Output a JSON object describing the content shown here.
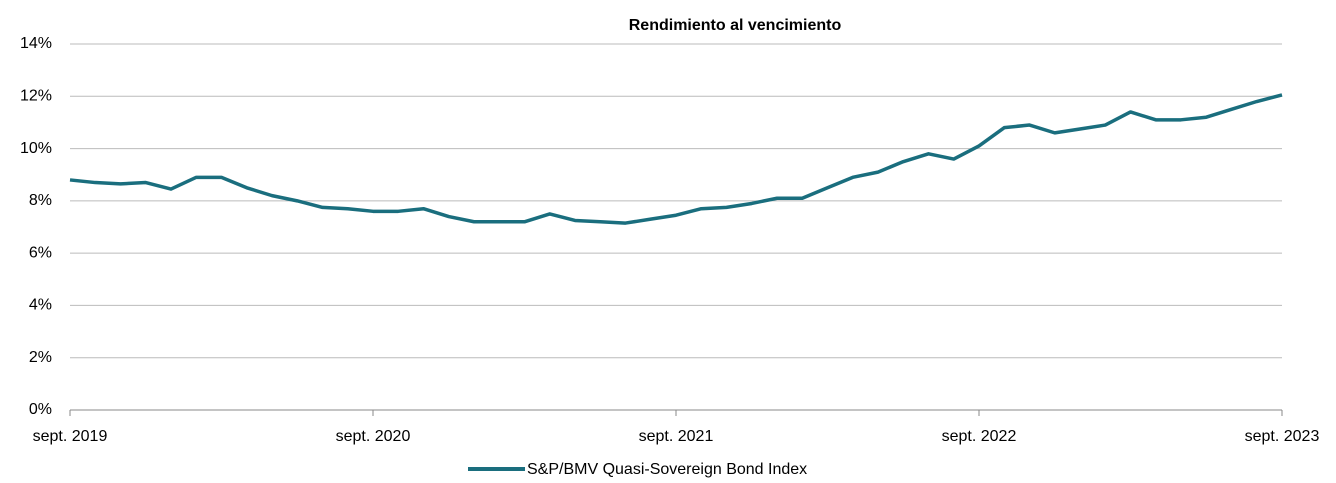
{
  "chart_data": {
    "type": "line",
    "title": "Rendimiento al vencimiento",
    "x": [
      "2019-09",
      "2019-10",
      "2019-11",
      "2019-12",
      "2020-01",
      "2020-02",
      "2020-03",
      "2020-04",
      "2020-05",
      "2020-06",
      "2020-07",
      "2020-08",
      "2020-09",
      "2020-10",
      "2020-11",
      "2020-12",
      "2021-01",
      "2021-02",
      "2021-03",
      "2021-04",
      "2021-05",
      "2021-06",
      "2021-07",
      "2021-08",
      "2021-09",
      "2021-10",
      "2021-11",
      "2021-12",
      "2022-01",
      "2022-02",
      "2022-03",
      "2022-04",
      "2022-05",
      "2022-06",
      "2022-07",
      "2022-08",
      "2022-09",
      "2022-10",
      "2022-11",
      "2022-12",
      "2023-01",
      "2023-02",
      "2023-03",
      "2023-04",
      "2023-05",
      "2023-06",
      "2023-07",
      "2023-08",
      "2023-09"
    ],
    "series": [
      {
        "name": "S&P/BMV Quasi-Sovereign Bond Index",
        "color": "#1a6e7e",
        "values": [
          8.8,
          8.7,
          8.65,
          8.7,
          8.45,
          8.9,
          8.9,
          8.5,
          8.2,
          8.0,
          7.75,
          7.7,
          7.6,
          7.6,
          7.7,
          7.4,
          7.2,
          7.2,
          7.2,
          7.5,
          7.25,
          7.2,
          7.15,
          7.3,
          7.45,
          7.7,
          7.75,
          7.9,
          8.1,
          8.1,
          8.5,
          8.9,
          9.1,
          9.5,
          9.8,
          9.6,
          10.1,
          10.8,
          10.9,
          10.6,
          10.75,
          10.9,
          11.4,
          11.1,
          11.1,
          11.2,
          11.5,
          11.8,
          12.05
        ]
      }
    ],
    "ylim": [
      0,
      14
    ],
    "yticks": [
      {
        "value": 0,
        "label": "0%"
      },
      {
        "value": 2,
        "label": "2%"
      },
      {
        "value": 4,
        "label": "4%"
      },
      {
        "value": 6,
        "label": "6%"
      },
      {
        "value": 8,
        "label": "8%"
      },
      {
        "value": 10,
        "label": "10%"
      },
      {
        "value": 12,
        "label": "12%"
      },
      {
        "value": 14,
        "label": "14%"
      }
    ],
    "xticks": [
      {
        "value": "2019-09",
        "label": "sept. 2019"
      },
      {
        "value": "2020-09",
        "label": "sept. 2020"
      },
      {
        "value": "2021-09",
        "label": "sept. 2021"
      },
      {
        "value": "2022-09",
        "label": "sept. 2022"
      },
      {
        "value": "2023-09",
        "label": "sept. 2023"
      }
    ],
    "grid": true,
    "legend": "bottom"
  }
}
